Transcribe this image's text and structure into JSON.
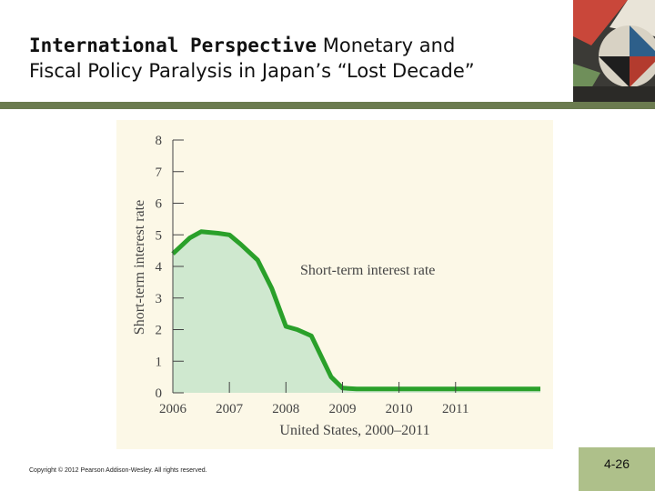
{
  "slide": {
    "title_bold": "International Perspective",
    "title_rest_line1": " Monetary and",
    "title_line2": "Fiscal Policy Paralysis in Japan’s “Lost Decade”",
    "copyright": "Copyright © 2012 Pearson Addison-Wesley. All rights reserved.",
    "page_number": "4-26"
  },
  "colors": {
    "line": "#2aa02a",
    "fill": "#cfe8cf",
    "chart_bg": "#fcf8e7",
    "rule": "#6b7b4f",
    "tab": "#aec08a"
  },
  "chart_data": {
    "type": "area",
    "title": "",
    "xlabel": "United States, 2000–2011",
    "ylabel": "Short-term interest rate",
    "annotation": "Short-term interest rate",
    "ylim": [
      0,
      8
    ],
    "xlim": [
      2006.0,
      2012.5
    ],
    "yticks": [
      0,
      1,
      2,
      3,
      4,
      5,
      6,
      7,
      8
    ],
    "xticks": [
      "2006",
      "2007",
      "2008",
      "2009",
      "2010",
      "2011"
    ],
    "grid": false,
    "series": [
      {
        "x": [
          2006.0,
          2006.3,
          2006.5,
          2006.8,
          2007.0,
          2007.2,
          2007.5,
          2007.75,
          2008.0,
          2008.2,
          2008.45,
          2008.8,
          2009.0,
          2009.25,
          2009.5,
          2010.0,
          2010.5,
          2011.0,
          2011.5,
          2012.0,
          2012.5
        ],
        "values": [
          4.4,
          4.9,
          5.1,
          5.05,
          5.0,
          4.7,
          4.2,
          3.3,
          2.1,
          2.0,
          1.8,
          0.5,
          0.15,
          0.12,
          0.12,
          0.12,
          0.12,
          0.12,
          0.12,
          0.12,
          0.12
        ]
      }
    ]
  }
}
